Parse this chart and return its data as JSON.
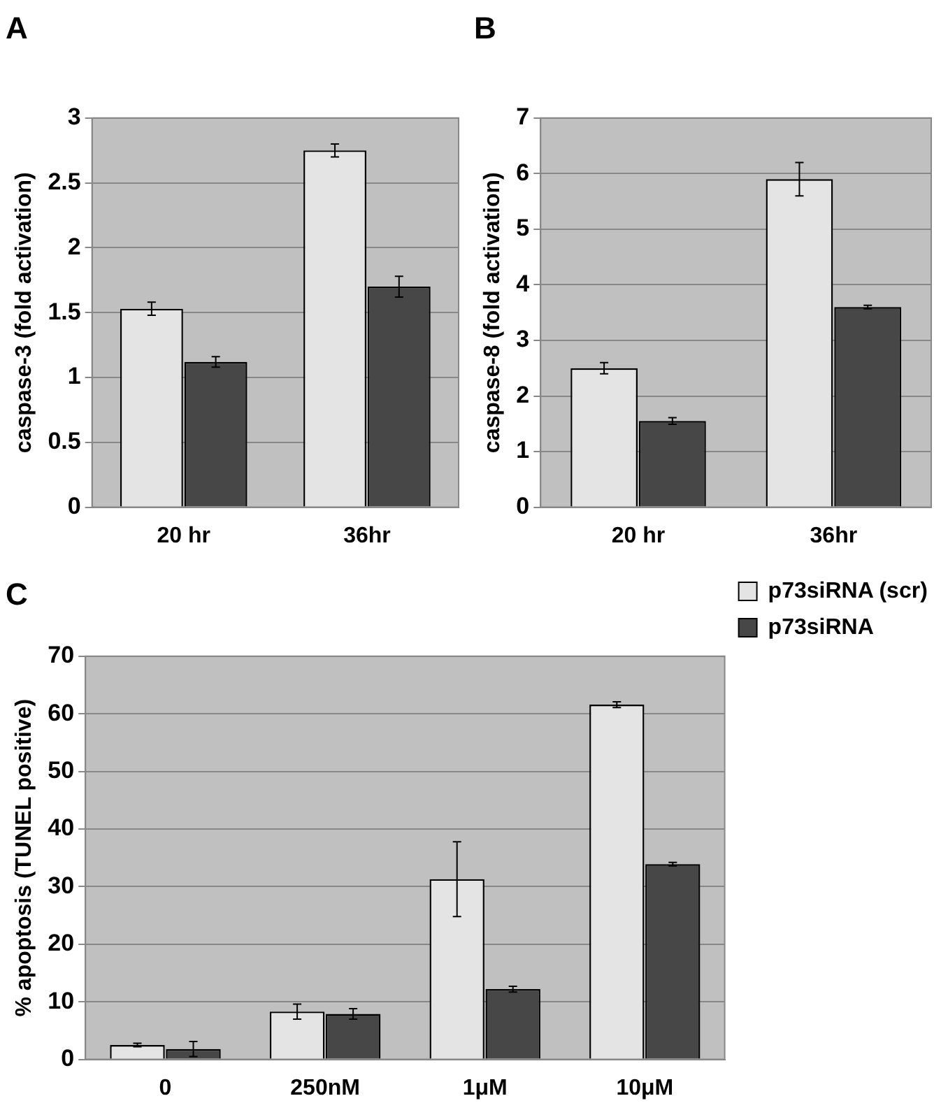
{
  "chart_data": [
    {
      "type": "bar",
      "title": "A",
      "ylabel": "caspase-3 (fold activation)",
      "categories": [
        "20 hr",
        "36hr"
      ],
      "series": [
        {
          "color": "#e4e4e4",
          "values": [
            1.53,
            2.75
          ],
          "errors": [
            0.05,
            0.05
          ]
        },
        {
          "color": "#474747",
          "values": [
            1.12,
            1.7
          ],
          "errors": [
            0.04,
            0.08
          ]
        }
      ],
      "ylim": [
        0,
        3
      ],
      "yticks": [
        0,
        0.5,
        1,
        1.5,
        2,
        2.5,
        3
      ],
      "grid": "y",
      "legend": false
    },
    {
      "type": "bar",
      "title": "B",
      "ylabel": "caspase-8 (fold activation)",
      "categories": [
        "20 hr",
        "36hr"
      ],
      "series": [
        {
          "color": "#e4e4e4",
          "values": [
            2.5,
            5.9
          ],
          "errors": [
            0.1,
            0.3
          ]
        },
        {
          "color": "#474747",
          "values": [
            1.55,
            3.6
          ],
          "errors": [
            0.06,
            0.03
          ]
        }
      ],
      "ylim": [
        0,
        7
      ],
      "yticks": [
        0,
        1,
        2,
        3,
        4,
        5,
        6,
        7
      ],
      "grid": "y",
      "legend": false
    },
    {
      "type": "bar",
      "title": "C",
      "ylabel": "% apoptosis (TUNEL positive)",
      "categories": [
        "0",
        "250nM",
        "1μM",
        "10μM"
      ],
      "series": [
        {
          "name": "p73siRNA (scr)",
          "color": "#e4e4e4",
          "values": [
            2.5,
            8.3,
            31.3,
            61.6
          ],
          "errors": [
            0.3,
            1.3,
            6.5,
            0.5
          ]
        },
        {
          "name": "p73siRNA",
          "color": "#474747",
          "values": [
            1.8,
            7.9,
            12.2,
            33.9
          ],
          "errors": [
            1.3,
            0.9,
            0.5,
            0.3
          ]
        }
      ],
      "ylim": [
        0,
        70
      ],
      "yticks": [
        0,
        10,
        20,
        30,
        40,
        50,
        60,
        70
      ],
      "grid": "y",
      "legend": "right"
    }
  ]
}
